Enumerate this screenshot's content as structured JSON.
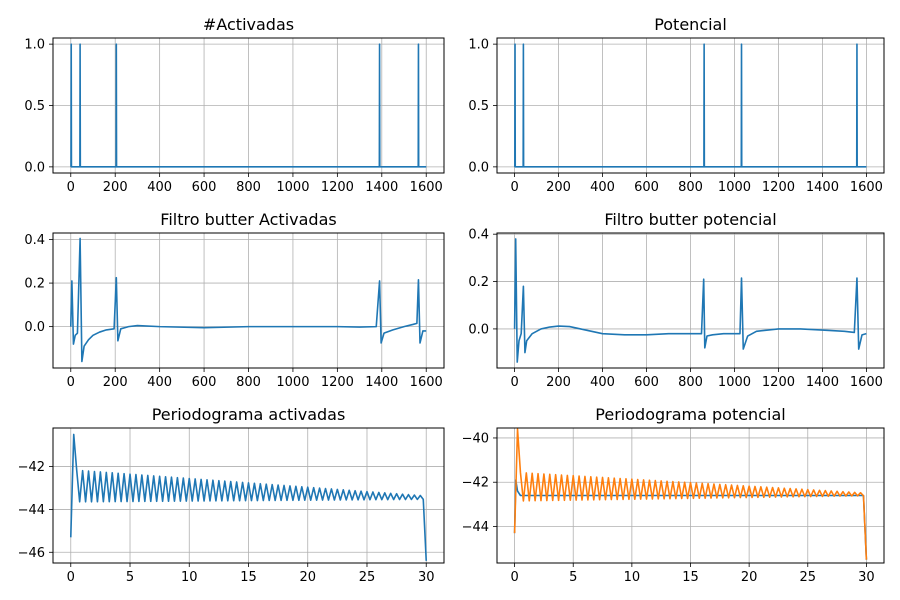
{
  "chart_data": [
    {
      "type": "line",
      "title": "#Activadas",
      "xlim": [
        -80,
        1680
      ],
      "ylim": [
        -0.05,
        1.05
      ],
      "xticks": [
        0,
        200,
        400,
        600,
        800,
        1000,
        1200,
        1400,
        1600
      ],
      "yticks": [
        0.0,
        0.5,
        1.0
      ],
      "ytick_labels": [
        "0.0",
        "0.5",
        "1.0"
      ],
      "grid": true,
      "series": [
        {
          "color": "#1f77b4",
          "kind": "impulses",
          "x_end": 1600,
          "impulses_at": [
            2,
            42,
            205,
            1390,
            1565
          ],
          "impulse_height": 1.0
        }
      ]
    },
    {
      "type": "line",
      "title": "Potencial",
      "xlim": [
        -80,
        1680
      ],
      "ylim": [
        -0.05,
        1.05
      ],
      "xticks": [
        0,
        200,
        400,
        600,
        800,
        1000,
        1200,
        1400,
        1600
      ],
      "yticks": [
        0.0,
        0.5,
        1.0
      ],
      "ytick_labels": [
        "0.0",
        "0.5",
        "1.0"
      ],
      "grid": true,
      "series": [
        {
          "color": "#1f77b4",
          "kind": "impulses",
          "x_end": 1600,
          "impulses_at": [
            2,
            40,
            862,
            1032,
            1557
          ],
          "impulse_height": 1.0
        }
      ]
    },
    {
      "type": "line",
      "title": "Filtro butter Activadas",
      "xlim": [
        -80,
        1680
      ],
      "ylim": [
        -0.19,
        0.43
      ],
      "xticks": [
        0,
        200,
        400,
        600,
        800,
        1000,
        1200,
        1400,
        1600
      ],
      "yticks": [
        -0.2,
        0.0,
        0.2,
        0.4
      ],
      "ytick_labels": [
        "",
        "0.0",
        "0.2",
        "0.4"
      ],
      "grid": true,
      "series": [
        {
          "color": "#1f77b4",
          "kind": "line",
          "x": [
            0,
            5,
            12,
            20,
            30,
            42,
            50,
            60,
            80,
            100,
            130,
            160,
            195,
            205,
            212,
            225,
            260,
            300,
            400,
            600,
            800,
            1000,
            1200,
            1300,
            1375,
            1390,
            1397,
            1410,
            1450,
            1500,
            1540,
            1558,
            1565,
            1572,
            1585,
            1600
          ],
          "y": [
            0.0,
            0.21,
            -0.08,
            -0.04,
            -0.03,
            0.405,
            -0.16,
            -0.09,
            -0.06,
            -0.04,
            -0.025,
            -0.015,
            -0.01,
            0.225,
            -0.065,
            -0.01,
            0.0,
            0.005,
            0.0,
            -0.005,
            0.0,
            0.0,
            0.0,
            -0.002,
            0.0,
            0.21,
            -0.075,
            -0.03,
            -0.015,
            0.0,
            0.01,
            0.015,
            0.215,
            -0.075,
            -0.02,
            -0.02
          ]
        }
      ]
    },
    {
      "type": "line",
      "title": "Filtro butter potencial",
      "xlim": [
        -80,
        1680
      ],
      "ylim": [
        -0.165,
        0.405
      ],
      "xticks": [
        0,
        200,
        400,
        600,
        800,
        1000,
        1200,
        1400,
        1600
      ],
      "yticks": [
        0.0,
        0.2,
        0.4
      ],
      "ytick_labels": [
        "0.0",
        "0.2",
        "0.4"
      ],
      "grid": true,
      "series": [
        {
          "color": "#1f77b4",
          "kind": "line",
          "x": [
            0,
            5,
            12,
            20,
            30,
            40,
            47,
            55,
            80,
            120,
            160,
            200,
            250,
            300,
            400,
            500,
            600,
            700,
            800,
            850,
            860,
            865,
            875,
            900,
            950,
            1000,
            1025,
            1032,
            1040,
            1060,
            1100,
            1200,
            1300,
            1400,
            1500,
            1545,
            1557,
            1565,
            1580,
            1600
          ],
          "y": [
            0.0,
            0.38,
            -0.14,
            -0.05,
            -0.02,
            0.18,
            -0.1,
            -0.05,
            -0.02,
            0.0,
            0.008,
            0.012,
            0.01,
            0.0,
            -0.02,
            -0.025,
            -0.025,
            -0.02,
            -0.02,
            -0.02,
            0.21,
            -0.08,
            -0.03,
            -0.025,
            -0.02,
            -0.02,
            -0.02,
            0.215,
            -0.085,
            -0.03,
            -0.01,
            0.0,
            0.0,
            -0.005,
            -0.01,
            -0.015,
            0.215,
            -0.085,
            -0.025,
            -0.02
          ]
        }
      ]
    },
    {
      "type": "line",
      "title": "Periodograma activadas",
      "xlim": [
        -1.5,
        31.5
      ],
      "ylim": [
        -46.5,
        -40.2
      ],
      "xticks": [
        0,
        5,
        10,
        15,
        20,
        25,
        30
      ],
      "yticks": [
        -46,
        -44,
        -42
      ],
      "ytick_labels": [
        "−46",
        "−44",
        "−42"
      ],
      "grid": true,
      "series": [
        {
          "color": "#1f77b4",
          "kind": "oscillation",
          "x_start": 0.0,
          "x_end": 30.0,
          "step": 0.25,
          "start_y": -45.3,
          "peak_y": -40.5,
          "mean_start": -42.9,
          "mean_end": -43.45,
          "amp_start": 0.75,
          "amp_end": 0.08,
          "end_y": -46.4
        }
      ]
    },
    {
      "type": "line",
      "title": "Periodograma potencial",
      "xlim": [
        -1.5,
        31.5
      ],
      "ylim": [
        -45.65,
        -39.55
      ],
      "xticks": [
        0,
        5,
        10,
        15,
        20,
        25,
        30
      ],
      "yticks": [
        -44,
        -42,
        -40
      ],
      "ytick_labels": [
        "−44",
        "−42",
        "−40"
      ],
      "grid": true,
      "series": [
        {
          "color": "#1f77b4",
          "kind": "flat",
          "x": [
            0.0,
            0.1,
            0.25,
            0.5,
            1.0,
            29.75,
            30.0
          ],
          "y": [
            -44.3,
            -41.9,
            -42.4,
            -42.6,
            -42.6,
            -42.6,
            -45.5
          ]
        },
        {
          "color": "#ff7f0e",
          "kind": "oscillation",
          "x_start": 0.0,
          "x_end": 30.0,
          "step": 0.25,
          "start_y": -44.3,
          "peak_y": -39.6,
          "mean_start": -42.2,
          "mean_end": -42.55,
          "amp_start": 0.65,
          "amp_end": 0.06,
          "end_y": -45.5
        }
      ]
    }
  ]
}
